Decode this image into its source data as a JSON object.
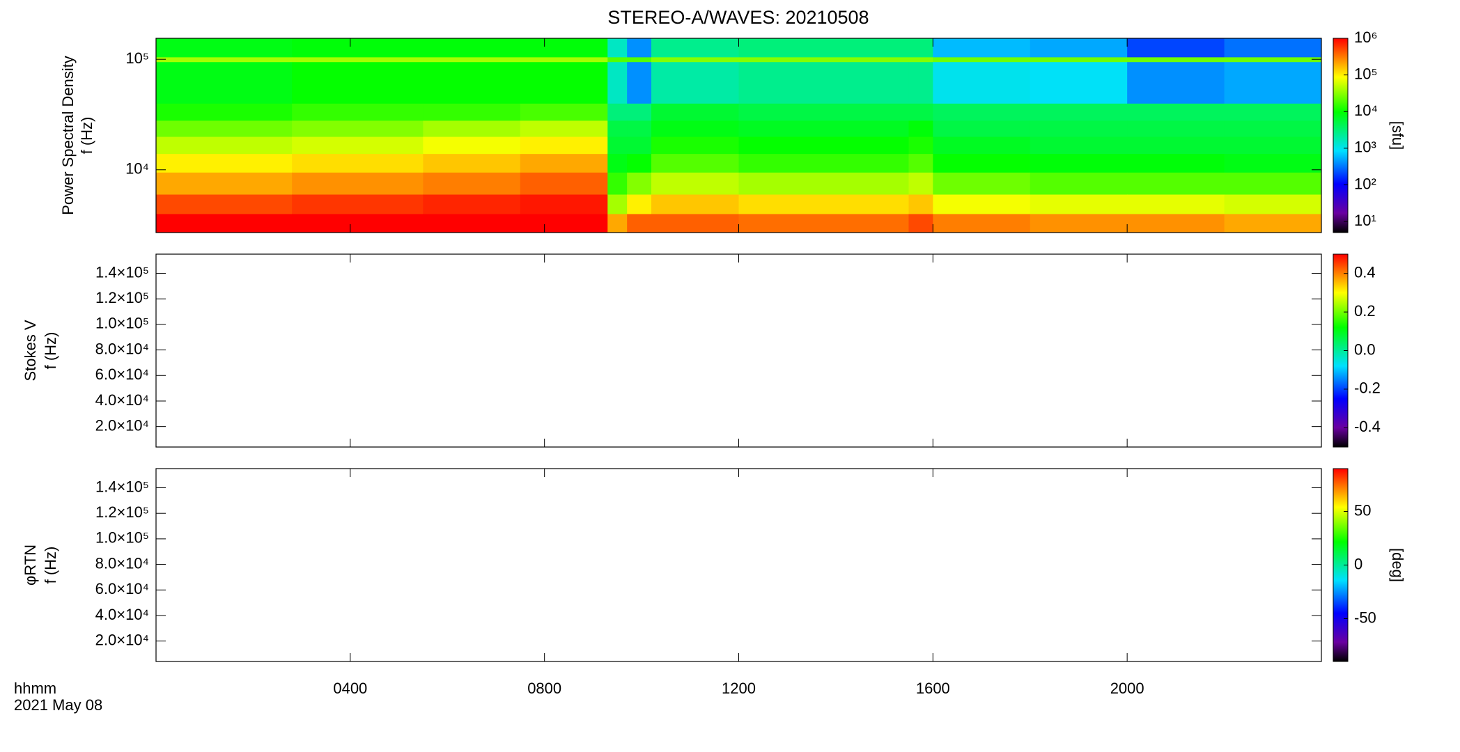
{
  "chart_data": [
    {
      "type": "heatmap",
      "title": "STEREO-A/WAVES: 20210508",
      "ylabel": [
        "Power Spectral Density",
        "f (Hz)"
      ],
      "xlim": [
        0,
        24
      ],
      "ylim": [
        2700,
        155000
      ],
      "ylog": true,
      "yticks": [
        {
          "value": 10000,
          "label": "10⁴"
        },
        {
          "value": 100000,
          "label": "10⁵"
        }
      ],
      "x_edges": [
        0,
        2.8,
        5.5,
        7.5,
        9.3,
        9.7,
        10.2,
        12,
        15.5,
        16,
        18,
        20,
        22,
        24
      ],
      "y_edges": [
        2700,
        4000,
        6000,
        9500,
        14000,
        20000,
        28000,
        40000,
        95000,
        105000,
        155000
      ],
      "z": [
        [
          1000000,
          500000,
          200000,
          100000,
          50000,
          25000,
          12000,
          8000,
          40000,
          8000
        ],
        [
          1000000,
          600000,
          250000,
          120000,
          60000,
          30000,
          15000,
          10000,
          40000,
          9000
        ],
        [
          1000000,
          700000,
          300000,
          150000,
          80000,
          40000,
          15000,
          10000,
          40000,
          9000
        ],
        [
          1000000,
          800000,
          400000,
          200000,
          100000,
          50000,
          18000,
          10000,
          40000,
          9000
        ],
        [
          200000,
          40000,
          15000,
          8000,
          6000,
          5000,
          3000,
          1500,
          20000,
          1500
        ],
        [
          400000,
          100000,
          30000,
          10000,
          6000,
          5000,
          3000,
          400,
          20000,
          400
        ],
        [
          400000,
          150000,
          50000,
          20000,
          12000,
          8000,
          6000,
          2000,
          30000,
          2500
        ],
        [
          350000,
          120000,
          40000,
          15000,
          10000,
          7000,
          5000,
          2500,
          30000,
          3000
        ],
        [
          500000,
          150000,
          50000,
          20000,
          12000,
          9000,
          5000,
          2500,
          30000,
          3000
        ],
        [
          300000,
          80000,
          25000,
          10000,
          7000,
          5000,
          4000,
          1000,
          25000,
          600
        ],
        [
          250000,
          70000,
          20000,
          9000,
          6000,
          5000,
          4000,
          900,
          25000,
          500
        ],
        [
          250000,
          70000,
          20000,
          9000,
          6000,
          5000,
          4000,
          400,
          25000,
          200
        ],
        [
          200000,
          60000,
          20000,
          8000,
          6000,
          5000,
          4000,
          500,
          25000,
          300
        ]
      ],
      "zlim": [
        5,
        1000000
      ],
      "zlog": true,
      "zlabel": "[sfu]",
      "zticks": [
        {
          "value": 10,
          "label": "10¹"
        },
        {
          "value": 100,
          "label": "10²"
        },
        {
          "value": 1000,
          "label": "10³"
        },
        {
          "value": 10000,
          "label": "10⁴"
        },
        {
          "value": 100000,
          "label": "10⁵"
        },
        {
          "value": 1000000,
          "label": "10⁶"
        }
      ]
    },
    {
      "type": "heatmap",
      "ylabel": [
        "Stokes V",
        "f (Hz)"
      ],
      "xlim": [
        0,
        24
      ],
      "ylim": [
        4000,
        155000
      ],
      "yticks": [
        {
          "value": 20000,
          "label": "2.0×10⁴"
        },
        {
          "value": 40000,
          "label": "4.0×10⁴"
        },
        {
          "value": 60000,
          "label": "6.0×10⁴"
        },
        {
          "value": 80000,
          "label": "8.0×10⁴"
        },
        {
          "value": 100000,
          "label": "1.0×10⁵"
        },
        {
          "value": 120000,
          "label": "1.2×10⁵"
        },
        {
          "value": 140000,
          "label": "1.4×10⁵"
        }
      ],
      "zlim": [
        -0.5,
        0.5
      ],
      "zticks": [
        -0.4,
        -0.2,
        {
          "value": 0,
          "label": "0.0"
        },
        0.2,
        0.4
      ]
    },
    {
      "type": "heatmap",
      "ylabel": [
        "φRTN",
        "f (Hz)"
      ],
      "xlim": [
        0,
        24
      ],
      "ylim": [
        4000,
        155000
      ],
      "yticks": [
        {
          "value": 20000,
          "label": "2.0×10⁴"
        },
        {
          "value": 40000,
          "label": "4.0×10⁴"
        },
        {
          "value": 60000,
          "label": "6.0×10⁴"
        },
        {
          "value": 80000,
          "label": "8.0×10⁴"
        },
        {
          "value": 100000,
          "label": "1.0×10⁵"
        },
        {
          "value": 120000,
          "label": "1.2×10⁵"
        },
        {
          "value": 140000,
          "label": "1.4×10⁵"
        }
      ],
      "zlim": [
        -90,
        90
      ],
      "zlabel": "[deg]",
      "zticks": [
        -50,
        0,
        50
      ],
      "xlabel": "hhmm",
      "date": "2021 May 08",
      "xticks": [
        {
          "value": 4,
          "label": "0400"
        },
        {
          "value": 8,
          "label": "0800"
        },
        {
          "value": 12,
          "label": "1200"
        },
        {
          "value": 16,
          "label": "1600"
        },
        {
          "value": 20,
          "label": "2000"
        }
      ]
    }
  ]
}
